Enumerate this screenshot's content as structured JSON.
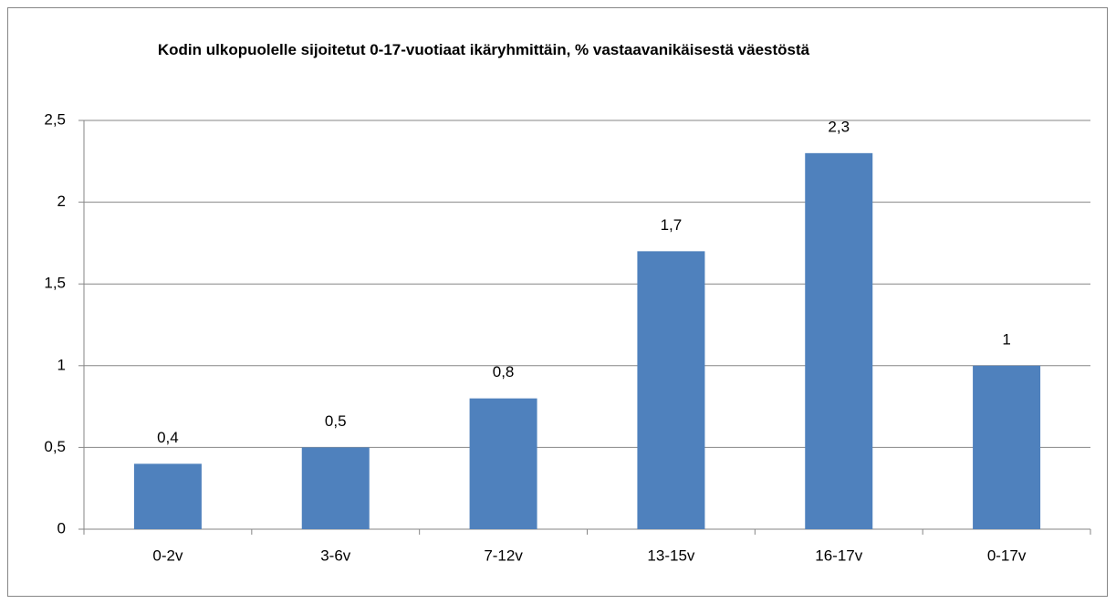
{
  "chart_data": {
    "type": "bar",
    "title": "Kodin ulkopuolelle sijoitetut 0-17-vuotiaat ikäryhmittäin, % vastaavanikäisestä väestöstä",
    "categories": [
      "0-2v",
      "3-6v",
      "7-12v",
      "13-15v",
      "16-17v",
      "0-17v"
    ],
    "values": [
      0.4,
      0.5,
      0.8,
      1.7,
      2.3,
      1
    ],
    "value_labels": [
      "0,4",
      "0,5",
      "0,8",
      "1,7",
      "2,3",
      "1"
    ],
    "color": "#4f81bd",
    "ylim": [
      0,
      2.5
    ],
    "yticks": [
      0,
      {
        "value": 0.5,
        "label": "0,5"
      },
      1,
      {
        "value": 1.5,
        "label": "1,5"
      },
      2,
      {
        "value": 2.5,
        "label": "2,5"
      }
    ],
    "grid": true
  }
}
